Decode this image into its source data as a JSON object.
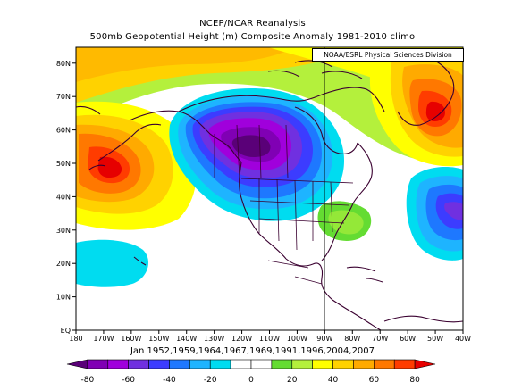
{
  "titles": {
    "line1": "NCEP/NCAR Reanalysis",
    "line2": "500mb Geopotential Height (m) Composite Anomaly 1981-2010 climo"
  },
  "credit": "NOAA/ESRL Physical Sciences Division",
  "composite_dates": "Jan 1952,1959,1964,1967,1969,1991,1996,2004,2007",
  "map_axes": {
    "lat_ticks": [
      "EQ",
      "10N",
      "20N",
      "30N",
      "40N",
      "50N",
      "60N",
      "70N",
      "80N"
    ],
    "lon_ticks": [
      "180",
      "170W",
      "160W",
      "150W",
      "140W",
      "130W",
      "120W",
      "110W",
      "100W",
      "90W",
      "80W",
      "70W",
      "60W",
      "50W",
      "40W"
    ]
  },
  "colorbar": {
    "labels": [
      "-80",
      "-60",
      "-40",
      "-20",
      "0",
      "20",
      "40",
      "60",
      "80"
    ],
    "colors": [
      "#5a0078",
      "#8000b4",
      "#a000dc",
      "#7030e0",
      "#3c3cff",
      "#1e78ff",
      "#1eb4ff",
      "#00dcf0",
      "#ffffff",
      "#ffffff",
      "#64dc32",
      "#b4f03c",
      "#ffff00",
      "#ffd200",
      "#ffaa00",
      "#ff7800",
      "#ff3c00",
      "#e60000"
    ]
  },
  "chart_data": {
    "type": "map",
    "field": "500mb geopotential height anomaly (m)",
    "lon_range": [
      "180",
      "40W"
    ],
    "lat_range": [
      "EQ",
      "85N"
    ],
    "value_range": [
      -80,
      80
    ],
    "features": [
      {
        "name": "negative center over western North America / Gulf of Alaska",
        "lon": "120W",
        "lat": "57N",
        "value": -80
      },
      {
        "name": "positive center over far eastern Siberia / Bering region",
        "lon": "170W",
        "lat": "50N",
        "value": 60
      },
      {
        "name": "positive center over Greenland / Labrador Sea",
        "lon": "50W",
        "lat": "65N",
        "value": 60
      },
      {
        "name": "negative center over western North Atlantic",
        "lon": "40W",
        "lat": "40N",
        "value": -40
      },
      {
        "name": "weak negative near Hawaii",
        "lon": "160W",
        "lat": "22N",
        "value": -20
      }
    ]
  }
}
